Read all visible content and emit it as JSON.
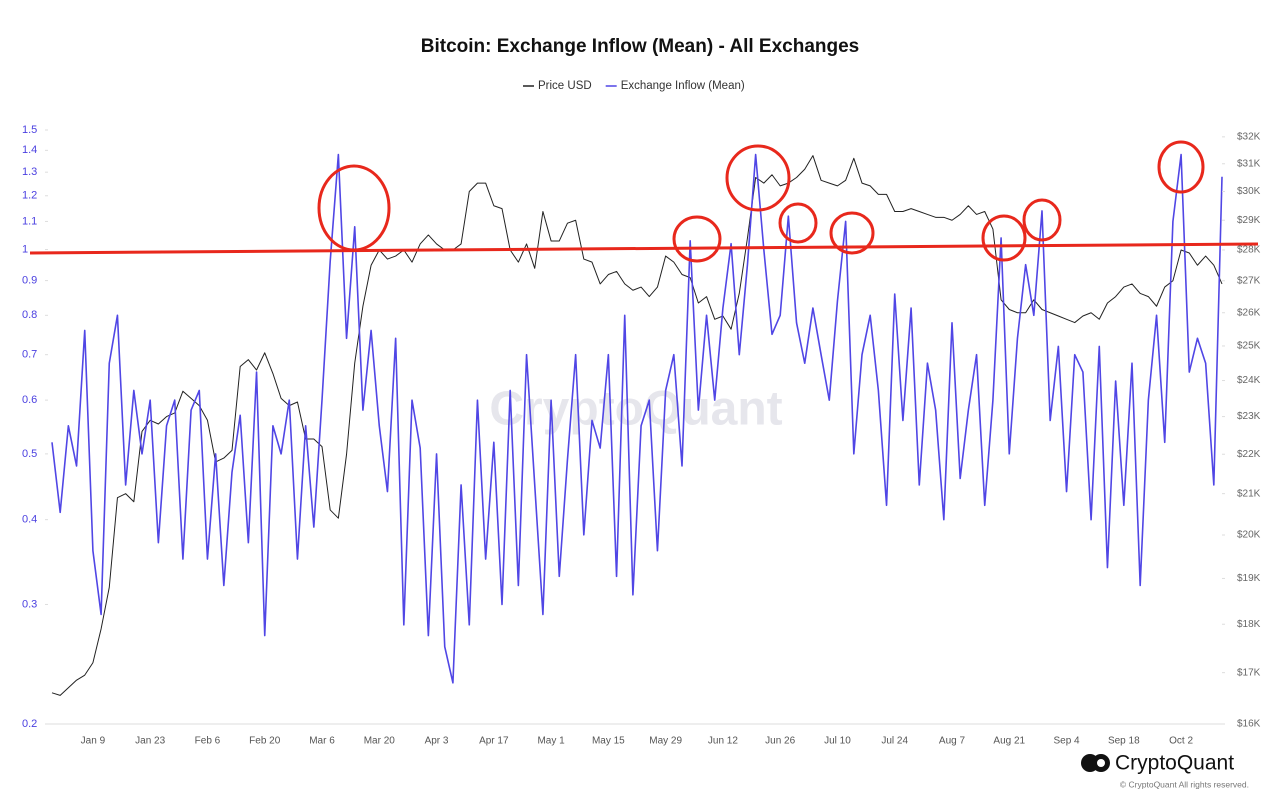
{
  "chart_data": {
    "type": "line",
    "title": "Bitcoin: Exchange Inflow (Mean) - All Exchanges",
    "watermark": "CryptoQuant",
    "brand": "CryptoQuant",
    "copyright": "© CryptoQuant All rights reserved.",
    "categories": [
      null,
      null,
      null,
      null,
      null,
      "Jan 9",
      null,
      null,
      null,
      null,
      null,
      null,
      "Jan 23",
      null,
      null,
      null,
      null,
      null,
      null,
      "Feb 6",
      null,
      null,
      null,
      null,
      null,
      null,
      "Feb 20",
      null,
      null,
      null,
      null,
      null,
      null,
      "Mar 6",
      null,
      null,
      null,
      null,
      null,
      null,
      "Mar 20",
      null,
      null,
      null,
      null,
      null,
      null,
      "Apr 3",
      null,
      null,
      null,
      null,
      null,
      null,
      "Apr 17",
      null,
      null,
      null,
      null,
      null,
      null,
      "May 1",
      null,
      null,
      null,
      null,
      null,
      null,
      "May 15",
      null,
      null,
      null,
      null,
      null,
      null,
      "May 29",
      null,
      null,
      null,
      null,
      null,
      null,
      "Jun 12",
      null,
      null,
      null,
      null,
      null,
      null,
      "Jun 26",
      null,
      null,
      null,
      null,
      null,
      null,
      "Jul 10",
      null,
      null,
      null,
      null,
      null,
      null,
      "Jul 24",
      null,
      null,
      null,
      null,
      null,
      null,
      "Aug 7",
      null,
      null,
      null,
      null,
      null,
      null,
      "Aug 21",
      null,
      null,
      null,
      null,
      null,
      null,
      "Sep 4",
      null,
      null,
      null,
      null,
      null,
      null,
      "Sep 18",
      null,
      null,
      null,
      null,
      null,
      null,
      "Oct 2",
      null,
      null,
      null,
      null,
      null
    ],
    "series": [
      {
        "name": "Price USD",
        "color": "#222222",
        "axis": "y2",
        "values": [
          16600,
          16550,
          16700,
          16850,
          16950,
          17200,
          17900,
          18800,
          20900,
          21000,
          20800,
          22600,
          22900,
          22800,
          23000,
          23100,
          23700,
          23500,
          23300,
          22900,
          21800,
          21900,
          22100,
          24400,
          24600,
          24300,
          24800,
          24200,
          23500,
          23300,
          23400,
          22400,
          22400,
          22200,
          20600,
          20400,
          22000,
          24500,
          26200,
          27500,
          28000,
          27700,
          27800,
          28000,
          27600,
          28200,
          28500,
          28200,
          28000,
          28000,
          28200,
          30000,
          30300,
          30300,
          29500,
          29400,
          28000,
          27600,
          28200,
          27400,
          29300,
          28300,
          28300,
          28900,
          29000,
          27700,
          27600,
          26900,
          27200,
          27300,
          26900,
          26700,
          26800,
          26500,
          26800,
          27800,
          27600,
          27200,
          27100,
          26300,
          26500,
          25800,
          25900,
          25500,
          26600,
          28400,
          30500,
          30300,
          30600,
          30200,
          30300,
          30500,
          30800,
          31300,
          30400,
          30300,
          30200,
          30400,
          31200,
          30300,
          30200,
          29900,
          29900,
          29300,
          29300,
          29400,
          29300,
          29200,
          29100,
          29100,
          29000,
          29200,
          29500,
          29200,
          29300,
          28700,
          26400,
          26100,
          26000,
          26000,
          26400,
          26100,
          26000,
          25900,
          25800,
          25700,
          25900,
          26000,
          25800,
          26300,
          26500,
          26800,
          26900,
          26600,
          26500,
          26200,
          26800,
          27000,
          28000,
          27900,
          27500,
          27800,
          27500,
          26900
        ]
      },
      {
        "name": "Exchange Inflow (Mean)",
        "color": "#5046e5",
        "values": [
          0.52,
          0.41,
          0.55,
          0.48,
          0.76,
          0.36,
          0.29,
          0.68,
          0.8,
          0.45,
          0.62,
          0.5,
          0.6,
          0.37,
          0.55,
          0.6,
          0.35,
          0.58,
          0.62,
          0.35,
          0.5,
          0.32,
          0.47,
          0.57,
          0.37,
          0.66,
          0.27,
          0.55,
          0.5,
          0.6,
          0.35,
          0.55,
          0.39,
          0.6,
          0.96,
          1.38,
          0.74,
          1.08,
          0.58,
          0.76,
          0.55,
          0.44,
          0.74,
          0.28,
          0.6,
          0.51,
          0.27,
          0.5,
          0.26,
          0.23,
          0.45,
          0.28,
          0.6,
          0.35,
          0.52,
          0.3,
          0.62,
          0.32,
          0.7,
          0.45,
          0.29,
          0.6,
          0.33,
          0.49,
          0.7,
          0.38,
          0.56,
          0.51,
          0.7,
          0.33,
          0.8,
          0.31,
          0.55,
          0.6,
          0.36,
          0.62,
          0.7,
          0.48,
          1.03,
          0.58,
          0.8,
          0.6,
          0.82,
          1.02,
          0.7,
          0.95,
          1.38,
          1.0,
          0.75,
          0.8,
          1.12,
          0.78,
          0.68,
          0.82,
          0.7,
          0.6,
          0.84,
          1.1,
          0.5,
          0.7,
          0.8,
          0.62,
          0.42,
          0.86,
          0.56,
          0.82,
          0.45,
          0.68,
          0.58,
          0.4,
          0.78,
          0.46,
          0.58,
          0.7,
          0.42,
          0.6,
          1.04,
          0.5,
          0.74,
          0.95,
          0.8,
          1.14,
          0.56,
          0.72,
          0.44,
          0.7,
          0.66,
          0.4,
          0.72,
          0.34,
          0.64,
          0.42,
          0.68,
          0.32,
          0.6,
          0.8,
          0.52,
          1.1,
          1.38,
          0.66,
          0.74,
          0.68,
          0.45,
          1.28
        ]
      }
    ],
    "yscale": "log",
    "ylim": [
      0.2,
      1.5
    ],
    "yticks": [
      0.2,
      0.3,
      0.4,
      0.5,
      0.6,
      0.7,
      0.8,
      0.9,
      1,
      1.1,
      1.2,
      1.3,
      1.4,
      1.5
    ],
    "y2scale": "log",
    "y2lim": [
      16000,
      32260
    ],
    "y2ticks": [
      {
        "value": 16000,
        "label": "$16K"
      },
      {
        "value": 17000,
        "label": "$17K"
      },
      {
        "value": 18000,
        "label": "$18K"
      },
      {
        "value": 19000,
        "label": "$19K"
      },
      {
        "value": 20000,
        "label": "$20K"
      },
      {
        "value": 21000,
        "label": "$21K"
      },
      {
        "value": 22000,
        "label": "$22K"
      },
      {
        "value": 23000,
        "label": "$23K"
      },
      {
        "value": 24000,
        "label": "$24K"
      },
      {
        "value": 25000,
        "label": "$25K"
      },
      {
        "value": 26000,
        "label": "$26K"
      },
      {
        "value": 27000,
        "label": "$27K"
      },
      {
        "value": 28000,
        "label": "$28K"
      },
      {
        "value": 29000,
        "label": "$29K"
      },
      {
        "value": 30000,
        "label": "$30K"
      },
      {
        "value": 31000,
        "label": "$31K"
      },
      {
        "value": 32000,
        "label": "$32K"
      }
    ],
    "grid": false
  }
}
